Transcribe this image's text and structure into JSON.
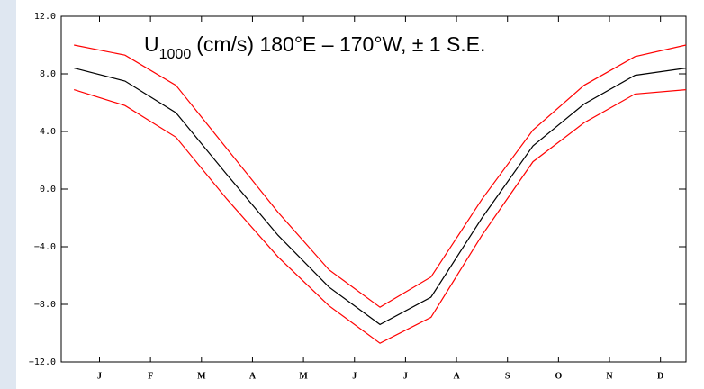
{
  "chart_data": {
    "type": "line",
    "title": {
      "main": "U",
      "subscript": "1000",
      "rest": "(cm/s)  180°E – 170°W, ± 1 S.E."
    },
    "x": [
      0,
      1,
      2,
      3,
      4,
      5,
      6,
      7,
      8,
      9,
      10,
      11,
      12
    ],
    "xlim": [
      -0.25,
      12
    ],
    "xticks": [
      {
        "value": 0.5,
        "label": "J"
      },
      {
        "value": 1.5,
        "label": "F"
      },
      {
        "value": 2.5,
        "label": "M"
      },
      {
        "value": 3.5,
        "label": "A"
      },
      {
        "value": 4.5,
        "label": "M"
      },
      {
        "value": 5.5,
        "label": "J"
      },
      {
        "value": 6.5,
        "label": "J"
      },
      {
        "value": 7.5,
        "label": "A"
      },
      {
        "value": 8.5,
        "label": "S"
      },
      {
        "value": 9.5,
        "label": "O"
      },
      {
        "value": 10.5,
        "label": "N"
      },
      {
        "value": 11.5,
        "label": "D"
      }
    ],
    "ylim": [
      -12,
      12
    ],
    "yticks": [
      {
        "value": -12,
        "label": "−12.0"
      },
      {
        "value": -8,
        "label": "−8.0"
      },
      {
        "value": -4,
        "label": "−4.0"
      },
      {
        "value": 0,
        "label": "0.0"
      },
      {
        "value": 4,
        "label": "4.0"
      },
      {
        "value": 8,
        "label": "8.0"
      },
      {
        "value": 12,
        "label": "12.0"
      }
    ],
    "series": [
      {
        "color": "#ff0000",
        "values": [
          10.0,
          9.3,
          7.2,
          2.8,
          -1.6,
          -5.6,
          -8.2,
          -6.1,
          -0.7,
          4.1,
          7.2,
          9.2,
          10.0
        ]
      },
      {
        "color": "#000000",
        "values": [
          8.4,
          7.5,
          5.3,
          1.0,
          -3.2,
          -6.8,
          -9.4,
          -7.5,
          -2.0,
          3.0,
          5.9,
          7.9,
          8.4
        ]
      },
      {
        "color": "#ff0000",
        "values": [
          6.9,
          5.8,
          3.6,
          -0.7,
          -4.7,
          -8.1,
          -10.7,
          -8.9,
          -3.2,
          1.9,
          4.6,
          6.6,
          6.9
        ]
      }
    ]
  }
}
